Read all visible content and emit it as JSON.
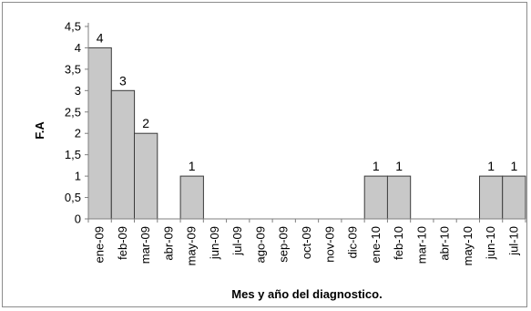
{
  "chart_data": {
    "type": "bar",
    "categories": [
      "ene-09",
      "feb-09",
      "mar-09",
      "abr-09",
      "may-09",
      "jun-09",
      "jul-09",
      "ago-09",
      "sep-09",
      "oct-09",
      "nov-09",
      "dic-09",
      "ene-10",
      "feb-10",
      "mar-10",
      "abr-10",
      "may-10",
      "jun-10",
      "jul-10"
    ],
    "values": [
      4,
      3,
      2,
      0,
      1,
      0,
      0,
      0,
      0,
      0,
      0,
      0,
      1,
      1,
      0,
      0,
      0,
      1,
      1
    ],
    "data_labels": [
      "4",
      "3",
      "2",
      "",
      "1",
      "",
      "",
      "",
      "",
      "",
      "",
      "",
      "1",
      "1",
      "",
      "",
      "",
      "1",
      "1"
    ],
    "yticks": [
      "0",
      "0,5",
      "1",
      "1,5",
      "2",
      "2,5",
      "3",
      "3,5",
      "4",
      "4,5"
    ],
    "ylim": [
      0,
      4.5
    ],
    "xlabel": "Mes y año del diagnostico.",
    "ylabel": "F.A",
    "grid": false,
    "legend": "none",
    "colors": {
      "bar_fill": "#c8c8c8",
      "bar_stroke": "#3a3a3a",
      "axis": "#7f7f7f"
    }
  }
}
